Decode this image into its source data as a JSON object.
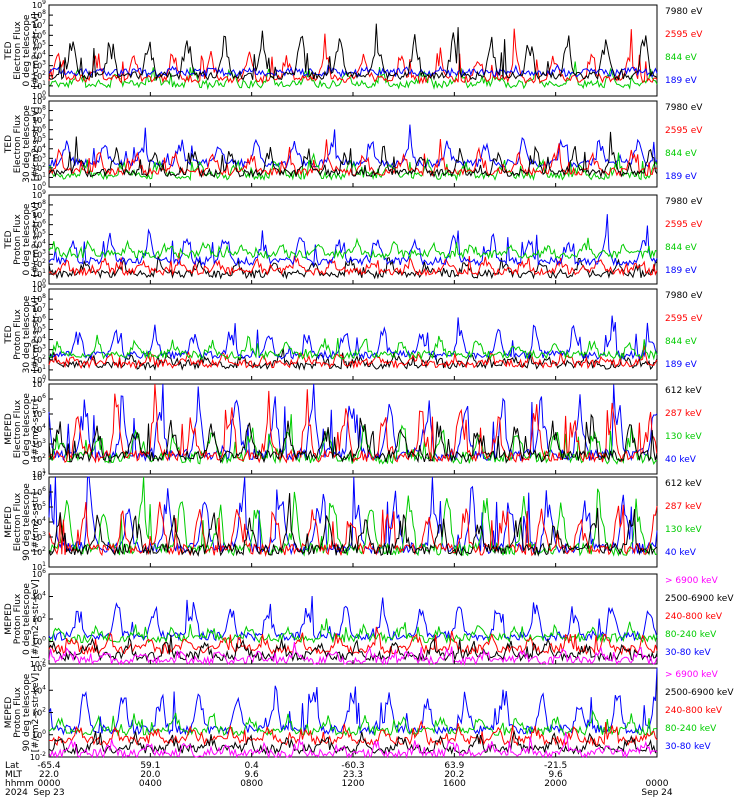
{
  "chart_data": [
    {
      "type": "line",
      "ylabel": [
        "TED",
        "Electron Flux",
        "0 deg telescope",
        "[#/cm2-s-str-eV]"
      ],
      "ylim": [
        1,
        1000000000
      ],
      "yscale": "log",
      "yticks": [
        {
          "e": "10",
          "p": "0"
        },
        {
          "e": "10",
          "p": "1"
        },
        {
          "e": "10",
          "p": "2"
        },
        {
          "e": "10",
          "p": "3"
        },
        {
          "e": "10",
          "p": "4"
        },
        {
          "e": "10",
          "p": "5"
        },
        {
          "e": "10",
          "p": "6"
        },
        {
          "e": "10",
          "p": "7"
        },
        {
          "e": "10",
          "p": "8"
        },
        {
          "e": "10",
          "p": "9"
        }
      ],
      "series": [
        {
          "name": "7980 eV",
          "color": "#000000",
          "base": 100,
          "spike": 1000000
        },
        {
          "name": "2595 eV",
          "color": "#ff0000",
          "base": 50,
          "spike": 20000
        },
        {
          "name": "844 eV",
          "color": "#00cc00",
          "base": 15,
          "spike": 300
        },
        {
          "name": "189 eV",
          "color": "#0000ff",
          "base": 200,
          "spike": 400
        }
      ],
      "draw_order": [
        2,
        1,
        3,
        0
      ]
    },
    {
      "type": "line",
      "ylabel": [
        "TED",
        "Electron Flux",
        "30 deg telescope",
        "[#/cm2-s-str-eV]"
      ],
      "ylim": [
        1,
        1000000000
      ],
      "yscale": "log",
      "yticks": [
        {
          "e": "10",
          "p": "0"
        },
        {
          "e": "10",
          "p": "1"
        },
        {
          "e": "10",
          "p": "2"
        },
        {
          "e": "10",
          "p": "3"
        },
        {
          "e": "10",
          "p": "4"
        },
        {
          "e": "10",
          "p": "5"
        },
        {
          "e": "10",
          "p": "6"
        },
        {
          "e": "10",
          "p": "7"
        },
        {
          "e": "10",
          "p": "8"
        },
        {
          "e": "10",
          "p": "9"
        }
      ],
      "series": [
        {
          "name": "7980 eV",
          "color": "#000000",
          "base": 30,
          "spike": 10000
        },
        {
          "name": "2595 eV",
          "color": "#ff0000",
          "base": 40,
          "spike": 5000
        },
        {
          "name": "844 eV",
          "color": "#00cc00",
          "base": 15,
          "spike": 500
        },
        {
          "name": "189 eV",
          "color": "#0000ff",
          "base": 300,
          "spike": 100000
        }
      ],
      "draw_order": [
        3,
        2,
        1,
        0
      ]
    },
    {
      "type": "line",
      "ylabel": [
        "TED",
        "Proton Flux",
        "0 deg telescope",
        "[#/cm2-s-str-eV]"
      ],
      "ylim": [
        1,
        1000000000
      ],
      "yscale": "log",
      "yticks": [
        {
          "e": "10",
          "p": "0"
        },
        {
          "e": "10",
          "p": "1"
        },
        {
          "e": "10",
          "p": "2"
        },
        {
          "e": "10",
          "p": "3"
        },
        {
          "e": "10",
          "p": "4"
        },
        {
          "e": "10",
          "p": "5"
        },
        {
          "e": "10",
          "p": "6"
        },
        {
          "e": "10",
          "p": "7"
        },
        {
          "e": "10",
          "p": "8"
        },
        {
          "e": "10",
          "p": "9"
        }
      ],
      "series": [
        {
          "name": "7980 eV",
          "color": "#000000",
          "base": 10,
          "spike": 300
        },
        {
          "name": "2595 eV",
          "color": "#ff0000",
          "base": 20,
          "spike": 300
        },
        {
          "name": "844 eV",
          "color": "#00cc00",
          "base": 1000,
          "spike": 10000
        },
        {
          "name": "189 eV",
          "color": "#0000ff",
          "base": 200,
          "spike": 100000
        }
      ],
      "draw_order": [
        0,
        1,
        3,
        2
      ]
    },
    {
      "type": "line",
      "ylabel": [
        "TED",
        "Proton Flux",
        "30 deg telescope",
        "[#/cm2-s-str-eV]"
      ],
      "ylim": [
        1,
        1000000000
      ],
      "yscale": "log",
      "yticks": [
        {
          "e": "10",
          "p": "0"
        },
        {
          "e": "10",
          "p": "1"
        },
        {
          "e": "10",
          "p": "2"
        },
        {
          "e": "10",
          "p": "3"
        },
        {
          "e": "10",
          "p": "4"
        },
        {
          "e": "10",
          "p": "5"
        },
        {
          "e": "10",
          "p": "6"
        },
        {
          "e": "10",
          "p": "7"
        },
        {
          "e": "10",
          "p": "8"
        },
        {
          "e": "10",
          "p": "9"
        }
      ],
      "series": [
        {
          "name": "7980 eV",
          "color": "#000000",
          "base": 30,
          "spike": 300
        },
        {
          "name": "2595 eV",
          "color": "#ff0000",
          "base": 40,
          "spike": 300
        },
        {
          "name": "844 eV",
          "color": "#00cc00",
          "base": 300,
          "spike": 10000
        },
        {
          "name": "189 eV",
          "color": "#0000ff",
          "base": 300,
          "spike": 100000
        }
      ],
      "draw_order": [
        0,
        1,
        3,
        2
      ]
    },
    {
      "type": "line",
      "ylabel": [
        "MEPED",
        "Electron Flux",
        "0 deg telescope",
        "[#/cm2-s-str]"
      ],
      "ylim": [
        10,
        10000000
      ],
      "yscale": "log",
      "yticks": [
        {
          "e": "10",
          "p": "1"
        },
        {
          "e": "10",
          "p": "2"
        },
        {
          "e": "10",
          "p": "3"
        },
        {
          "e": "10",
          "p": "4"
        },
        {
          "e": "10",
          "p": "5"
        },
        {
          "e": "10",
          "p": "6"
        },
        {
          "e": "10",
          "p": "7"
        }
      ],
      "series": [
        {
          "name": "612 keV",
          "color": "#000000",
          "base": 150,
          "spike": 30000
        },
        {
          "name": "287 keV",
          "color": "#ff0000",
          "base": 150,
          "spike": 200000
        },
        {
          "name": "130 keV",
          "color": "#00cc00",
          "base": 120,
          "spike": 10000
        },
        {
          "name": "40 keV",
          "color": "#0000ff",
          "base": 200,
          "spike": 1000000
        }
      ],
      "draw_order": [
        3,
        2,
        1,
        0
      ]
    },
    {
      "type": "line",
      "ylabel": [
        "MEPED",
        "Electron Flux",
        "90 deg telescope",
        "[#/cm2-s-str]"
      ],
      "ylim": [
        10,
        10000000
      ],
      "yscale": "log",
      "yticks": [
        {
          "e": "10",
          "p": "1"
        },
        {
          "e": "10",
          "p": "2"
        },
        {
          "e": "10",
          "p": "3"
        },
        {
          "e": "10",
          "p": "4"
        },
        {
          "e": "10",
          "p": "5"
        },
        {
          "e": "10",
          "p": "6"
        },
        {
          "e": "10",
          "p": "7"
        }
      ],
      "series": [
        {
          "name": "612 keV",
          "color": "#000000",
          "base": 150,
          "spike": 30000
        },
        {
          "name": "287 keV",
          "color": "#ff0000",
          "base": 150,
          "spike": 100000
        },
        {
          "name": "130 keV",
          "color": "#00cc00",
          "base": 150,
          "spike": 300000
        },
        {
          "name": "40 keV",
          "color": "#0000ff",
          "base": 200,
          "spike": 1000000
        }
      ],
      "draw_order": [
        3,
        2,
        1,
        0
      ]
    },
    {
      "type": "line",
      "ylabel": [
        "MEPED",
        "Proton Flux",
        "0 deg telescope",
        "[#/cm2-s-str-keV]"
      ],
      "ylim": [
        0.01,
        1000000
      ],
      "yscale": "log",
      "yticks": [
        {
          "e": "10",
          "p": "-2"
        },
        {
          "e": "10",
          "p": "0"
        },
        {
          "e": "10",
          "p": "2"
        },
        {
          "e": "10",
          "p": "4"
        },
        {
          "e": "10",
          "p": "6"
        }
      ],
      "series": [
        {
          "name": "> 6900 keV",
          "color": "#ff00ff",
          "base": 0.02,
          "spike": 0.2
        },
        {
          "name": "2500-6900 keV",
          "color": "#000000",
          "base": 0.05,
          "spike": 1
        },
        {
          "name": "240-800 keV",
          "color": "#ff0000",
          "base": 0.2,
          "spike": 3
        },
        {
          "name": "80-240 keV",
          "color": "#00cc00",
          "base": 2,
          "spike": 20
        },
        {
          "name": "30-80 keV",
          "color": "#0000ff",
          "base": 3,
          "spike": 3000
        }
      ],
      "draw_order": [
        4,
        3,
        2,
        1,
        0
      ]
    },
    {
      "type": "line",
      "ylabel": [
        "MEPED",
        "Proton Flux",
        "90 deg telescope",
        "[#/cm2-s-str-keV]"
      ],
      "ylim": [
        0.01,
        1000000
      ],
      "yscale": "log",
      "yticks": [
        {
          "e": "10",
          "p": "-2"
        },
        {
          "e": "10",
          "p": "0"
        },
        {
          "e": "10",
          "p": "2"
        },
        {
          "e": "10",
          "p": "4"
        },
        {
          "e": "10",
          "p": "6"
        }
      ],
      "series": [
        {
          "name": "> 6900 keV",
          "color": "#ff00ff",
          "base": 0.02,
          "spike": 0.2
        },
        {
          "name": "2500-6900 keV",
          "color": "#000000",
          "base": 0.05,
          "spike": 1
        },
        {
          "name": "240-800 keV",
          "color": "#ff0000",
          "base": 0.3,
          "spike": 5
        },
        {
          "name": "80-240 keV",
          "color": "#00cc00",
          "base": 2,
          "spike": 50
        },
        {
          "name": "30-80 keV",
          "color": "#0000ff",
          "base": 3,
          "spike": 10000
        }
      ],
      "draw_order": [
        4,
        3,
        2,
        1,
        0
      ]
    }
  ],
  "x_axis": {
    "row_labels": [
      "Lat",
      "MLT",
      "hhmm",
      "2024"
    ],
    "positions": [
      {
        "frac": 0.0,
        "lat": "-65.4",
        "mlt": "22.0",
        "hhmm": "0000",
        "date": "Sep 23"
      },
      {
        "frac": 0.1667,
        "lat": "59.1",
        "mlt": "20.0",
        "hhmm": "0400",
        "date": ""
      },
      {
        "frac": 0.3333,
        "lat": "0.4",
        "mlt": "9.6",
        "hhmm": "0800",
        "date": ""
      },
      {
        "frac": 0.5,
        "lat": "-60.3",
        "mlt": "23.3",
        "hhmm": "1200",
        "date": ""
      },
      {
        "frac": 0.6667,
        "lat": "63.9",
        "mlt": "20.2",
        "hhmm": "1600",
        "date": ""
      },
      {
        "frac": 0.8333,
        "lat": "-21.5",
        "mlt": "9.6",
        "hhmm": "2000",
        "date": ""
      },
      {
        "frac": 1.0,
        "lat": "",
        "mlt": "",
        "hhmm": "0000",
        "date": "Sep 24"
      }
    ]
  }
}
